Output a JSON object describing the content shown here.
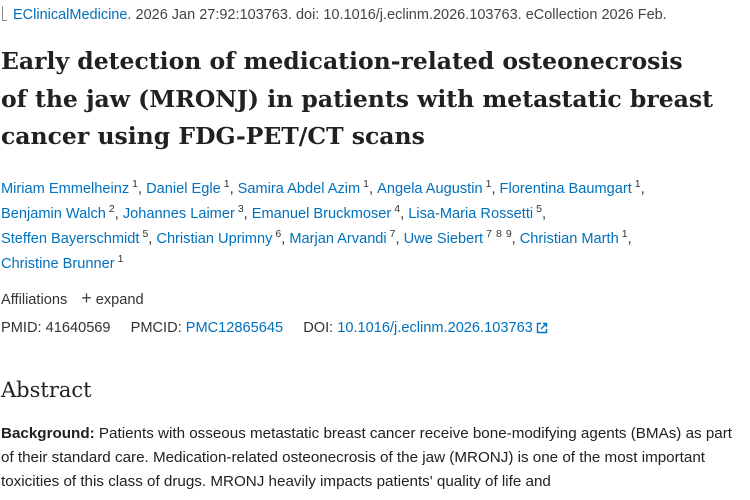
{
  "citation": {
    "journal": "EClinicalMedicine.",
    "details": "2026 Jan 27:92:103763. doi: 10.1016/j.eclinm.2026.103763. eCollection 2026 Feb."
  },
  "title_lines": [
    "Early detection of medication-related osteonecrosis",
    "of the jaw (MRONJ) in patients with metastatic breast",
    "cancer using FDG-PET/CT scans"
  ],
  "authors": [
    {
      "name": "Miriam Emmelheinz",
      "affiliations": [
        1
      ]
    },
    {
      "name": "Daniel Egle",
      "affiliations": [
        1
      ]
    },
    {
      "name": "Samira Abdel Azim",
      "affiliations": [
        1
      ]
    },
    {
      "name": "Angela Augustin",
      "affiliations": [
        1
      ]
    },
    {
      "name": "Florentina Baumgart",
      "affiliations": [
        1
      ]
    },
    {
      "name": "Benjamin Walch",
      "affiliations": [
        2
      ]
    },
    {
      "name": "Johannes Laimer",
      "affiliations": [
        3
      ]
    },
    {
      "name": "Emanuel Bruckmoser",
      "affiliations": [
        4
      ]
    },
    {
      "name": "Lisa-Maria Rossetti",
      "affiliations": [
        5
      ]
    },
    {
      "name": "Steffen Bayerschmidt",
      "affiliations": [
        5
      ]
    },
    {
      "name": "Christian Uprimny",
      "affiliations": [
        6
      ]
    },
    {
      "name": "Marjan Arvandi",
      "affiliations": [
        7
      ]
    },
    {
      "name": "Uwe Siebert",
      "affiliations": [
        7,
        8,
        9
      ]
    },
    {
      "name": "Christian Marth",
      "affiliations": [
        1
      ]
    },
    {
      "name": "Christine Brunner",
      "affiliations": [
        1
      ]
    }
  ],
  "affiliations": {
    "label": "Affiliations",
    "toggle": "expand"
  },
  "identifiers": {
    "pmid_label": "PMID:",
    "pmid": "41640569",
    "pmcid_label": "PMCID:",
    "pmcid": "PMC12865645",
    "doi_label": "DOI:",
    "doi": "10.1016/j.eclinm.2026.103763"
  },
  "abstract": {
    "heading": "Abstract",
    "background_label": "Background:",
    "background_text": "Patients with osseous metastatic breast cancer receive bone-modifying agents (BMAs) as part of their standard care. Medication-related osteonecrosis of the jaw (MRONJ) is one of the most important toxicities of this class of drugs. MRONJ heavily impacts patients' quality of life and"
  }
}
